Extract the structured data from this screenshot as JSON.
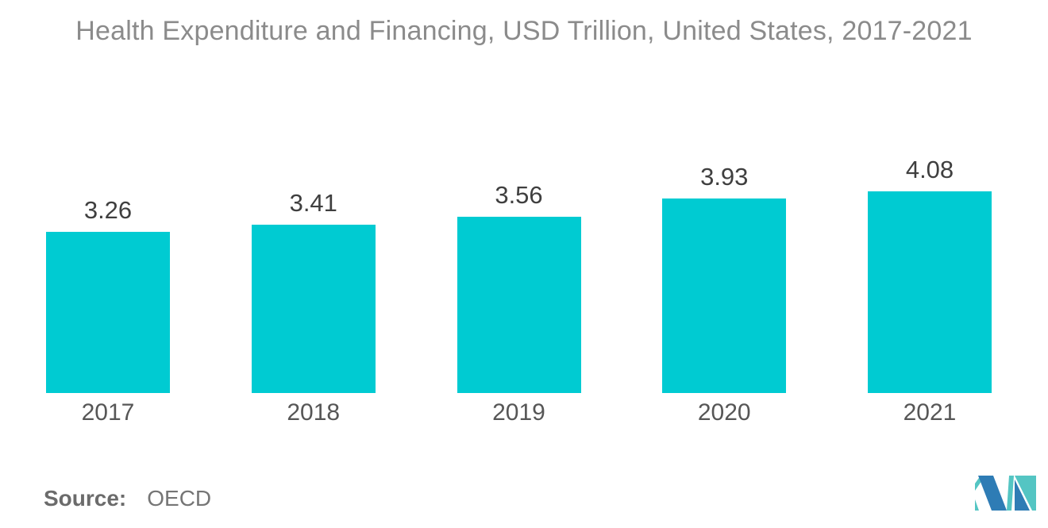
{
  "title": "Health Expenditure and Financing, USD Trillion, United States, 2017-2021",
  "source": {
    "label": "Source:",
    "value": "OECD"
  },
  "logo": {
    "name": "mordor-intelligence-logo",
    "color_blue": "#2e7cb5",
    "color_teal": "#54c5c3"
  },
  "colors": {
    "bar": "#00cbd2",
    "title_text": "#8b8b8b",
    "value_label_text": "#3f3f3f",
    "year_label_text": "#565656",
    "source_text": "#6e6e6e",
    "background": "#ffffff"
  },
  "chart_data": {
    "type": "bar",
    "title": "Health Expenditure and Financing, USD Trillion, United States, 2017-2021",
    "categories": [
      "2017",
      "2018",
      "2019",
      "2020",
      "2021"
    ],
    "values": [
      3.26,
      3.41,
      3.56,
      3.93,
      4.08
    ],
    "value_labels": [
      "3.26",
      "3.41",
      "3.56",
      "3.93",
      "4.08"
    ],
    "xlabel": "",
    "ylabel": "",
    "unit": "USD Trillion",
    "ylim": [
      0,
      4.5
    ],
    "grid": false,
    "legend": false,
    "axes_hidden": true,
    "bar_color": "#00cbd2"
  }
}
